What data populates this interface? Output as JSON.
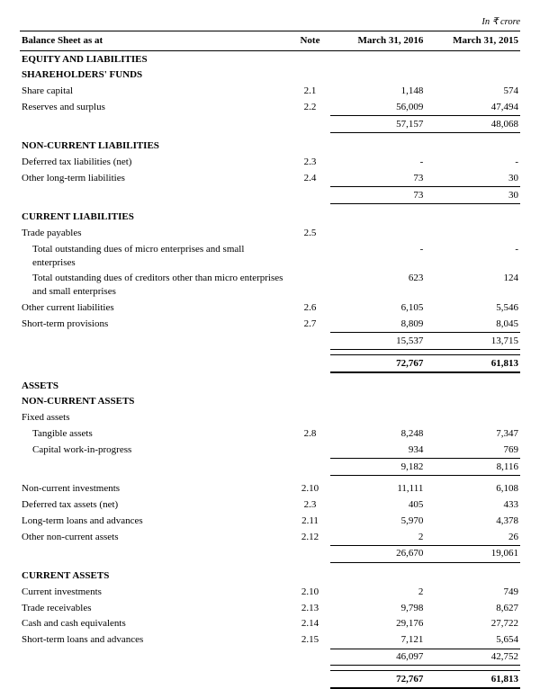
{
  "currency_note": "In ₹ crore",
  "header": {
    "title": "Balance Sheet as at",
    "note": "Note",
    "col1": "March 31, 2016",
    "col2": "March 31, 2015"
  },
  "s": {
    "eq_liab": "EQUITY AND LIABILITIES",
    "sh_funds": "SHAREHOLDERS' FUNDS",
    "share_cap": {
      "label": "Share capital",
      "note": "2.1",
      "v1": "1,148",
      "v2": "574"
    },
    "reserves": {
      "label": "Reserves and surplus",
      "note": "2.2",
      "v1": "56,009",
      "v2": "47,494"
    },
    "sh_total": {
      "v1": "57,157",
      "v2": "48,068"
    },
    "ncl": "NON-CURRENT LIABILITIES",
    "def_tax_l": {
      "label": "Deferred tax liabilities (net)",
      "note": "2.3",
      "v1": "-",
      "v2": "-"
    },
    "other_lt": {
      "label": "Other long-term liabilities",
      "note": "2.4",
      "v1": "73",
      "v2": "30"
    },
    "ncl_total": {
      "v1": "73",
      "v2": "30"
    },
    "cl": "CURRENT LIABILITIES",
    "trade_pay": {
      "label": "Trade payables",
      "note": "2.5"
    },
    "micro": {
      "label": "Total outstanding dues of micro enterprises and small enterprises",
      "v1": "-",
      "v2": "-"
    },
    "creditors": {
      "label": "Total outstanding dues of creditors other than micro enterprises and small enterprises",
      "v1": "623",
      "v2": "124"
    },
    "other_cl": {
      "label": "Other current liabilities",
      "note": "2.6",
      "v1": "6,105",
      "v2": "5,546"
    },
    "st_prov": {
      "label": "Short-term provisions",
      "note": "2.7",
      "v1": "8,809",
      "v2": "8,045"
    },
    "cl_total": {
      "v1": "15,537",
      "v2": "13,715"
    },
    "liab_grand": {
      "v1": "72,767",
      "v2": "61,813"
    },
    "assets": "ASSETS",
    "nca": "NON-CURRENT ASSETS",
    "fixed": "Fixed assets",
    "tangible": {
      "label": "Tangible assets",
      "note": "2.8",
      "v1": "8,248",
      "v2": "7,347"
    },
    "cwip": {
      "label": "Capital work-in-progress",
      "v1": "934",
      "v2": "769"
    },
    "fixed_total": {
      "v1": "9,182",
      "v2": "8,116"
    },
    "nc_inv": {
      "label": "Non-current investments",
      "note": "2.10",
      "v1": "11,111",
      "v2": "6,108"
    },
    "def_tax_a": {
      "label": "Deferred tax assets (net)",
      "note": "2.3",
      "v1": "405",
      "v2": "433"
    },
    "lt_loans": {
      "label": "Long-term loans and advances",
      "note": "2.11",
      "v1": "5,970",
      "v2": "4,378"
    },
    "other_nca": {
      "label": "Other non-current assets",
      "note": "2.12",
      "v1": "2",
      "v2": "26"
    },
    "nca_total": {
      "v1": "26,670",
      "v2": "19,061"
    },
    "ca": "CURRENT ASSETS",
    "cur_inv": {
      "label": "Current investments",
      "note": "2.10",
      "v1": "2",
      "v2": "749"
    },
    "trade_rec": {
      "label": "Trade receivables",
      "note": "2.13",
      "v1": "9,798",
      "v2": "8,627"
    },
    "cash": {
      "label": "Cash and cash equivalents",
      "note": "2.14",
      "v1": "29,176",
      "v2": "27,722"
    },
    "st_loans": {
      "label": "Short-term loans and advances",
      "note": "2.15",
      "v1": "7,121",
      "v2": "5,654"
    },
    "ca_total": {
      "v1": "46,097",
      "v2": "42,752"
    },
    "assets_grand": {
      "v1": "72,767",
      "v2": "61,813"
    }
  }
}
